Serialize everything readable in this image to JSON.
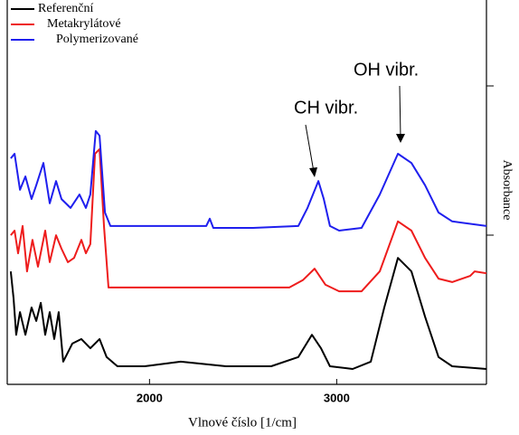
{
  "chart_data": {
    "type": "line",
    "xlabel": "Vlnové číslo [1/cm]",
    "ylabel": "Absorbance",
    "xlim": [
      1240,
      3800
    ],
    "xticks": [
      2000,
      3000
    ],
    "ylim": [
      0,
      100
    ],
    "legend": "upper left",
    "annotations": [
      "CH vibr.",
      "OH vibr."
    ],
    "series": [
      {
        "name": "Referenční",
        "color": "#000000",
        "x": [
          1259,
          1274,
          1288,
          1308,
          1337,
          1370,
          1395,
          1419,
          1443,
          1467,
          1491,
          1515,
          1539,
          1588,
          1636,
          1684,
          1733,
          1771,
          1829,
          1974,
          2167,
          2409,
          2650,
          2795,
          2868,
          2916,
          2964,
          3085,
          3182,
          3254,
          3327,
          3399,
          3472,
          3544,
          3617,
          3800
        ],
        "values": [
          29.4,
          22.4,
          12.9,
          18.8,
          12.9,
          20,
          16.5,
          21.2,
          12.9,
          18.8,
          11.8,
          18.8,
          5.9,
          10.6,
          11.8,
          9.4,
          11.8,
          7.1,
          4.7,
          4.7,
          5.9,
          4.7,
          4.7,
          7.1,
          12.9,
          9.4,
          4.7,
          4,
          5.9,
          20,
          32.9,
          29.4,
          17.6,
          7.1,
          4.7,
          4
        ]
      },
      {
        "name": "Metakrylátové",
        "color": "#ee1c1c",
        "x": [
          1259,
          1279,
          1298,
          1322,
          1346,
          1375,
          1404,
          1443,
          1467,
          1501,
          1530,
          1564,
          1597,
          1636,
          1660,
          1684,
          1709,
          1733,
          1757,
          1781,
          1926,
          2167,
          2409,
          2650,
          2747,
          2819,
          2882,
          2940,
          3013,
          3133,
          3230,
          3327,
          3399,
          3472,
          3544,
          3617,
          3713,
          3737,
          3800
        ],
        "values": [
          38.8,
          40,
          34.1,
          41.2,
          29.4,
          37.6,
          30.6,
          40,
          31.8,
          38.8,
          35.3,
          31.8,
          32.9,
          37.6,
          34.1,
          36.5,
          60,
          61.2,
          41.2,
          25.2,
          25.2,
          25.2,
          25.2,
          25.2,
          25.2,
          27.1,
          30.1,
          25.9,
          24.2,
          24.2,
          29.4,
          42.4,
          40,
          32.9,
          27.5,
          26.6,
          28.2,
          29.4,
          28.9
        ]
      },
      {
        "name": "Polymerizované",
        "color": "#1f1fee",
        "x": [
          1259,
          1279,
          1308,
          1337,
          1370,
          1395,
          1433,
          1467,
          1501,
          1530,
          1578,
          1626,
          1660,
          1684,
          1713,
          1733,
          1762,
          1791,
          2167,
          2303,
          2322,
          2341,
          2554,
          2795,
          2844,
          2902,
          2931,
          2964,
          3013,
          3133,
          3230,
          3327,
          3399,
          3472,
          3544,
          3617,
          3800
        ],
        "values": [
          58.8,
          60,
          50.6,
          54.1,
          48.2,
          51.8,
          57.6,
          47.1,
          52.9,
          48.2,
          45.9,
          49.4,
          45.9,
          49.4,
          65.9,
          64.7,
          44.7,
          41.2,
          41.2,
          41.2,
          43.1,
          40.7,
          40.7,
          41.2,
          45.9,
          52.9,
          48.2,
          41.2,
          40,
          40.7,
          49.4,
          60,
          57.6,
          51.8,
          44.7,
          42.4,
          41.2
        ]
      }
    ]
  }
}
